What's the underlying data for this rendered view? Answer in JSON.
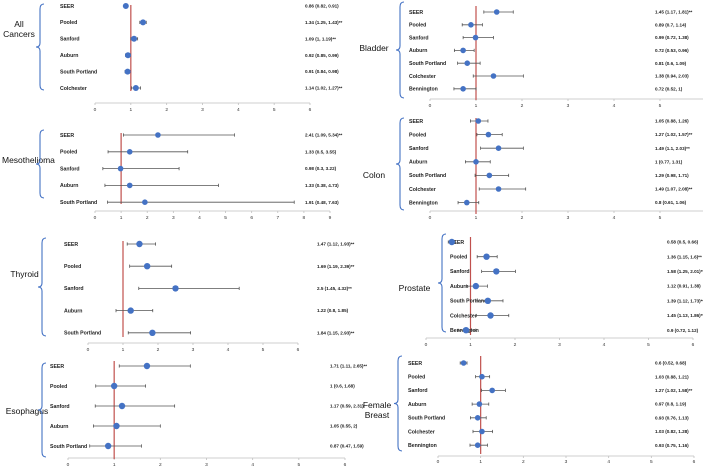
{
  "chart_data": [
    {
      "type": "forest",
      "title": "All Cancers",
      "xlim": [
        0,
        6
      ],
      "xticks": [
        0,
        1,
        2,
        3,
        4,
        5,
        6
      ],
      "reference_line": 1,
      "rows": [
        {
          "label": "SEER",
          "estimate": 0.86,
          "lower": 0.82,
          "upper": 0.91,
          "ci_text": "0.86 (0.82, 0.91)"
        },
        {
          "label": "Pooled",
          "estimate": 1.34,
          "lower": 1.25,
          "upper": 1.43,
          "ci_text": "1.34 (1.25, 1.43)**"
        },
        {
          "label": "Sanford",
          "estimate": 1.09,
          "lower": 1.0,
          "upper": 1.19,
          "ci_text": "1.09 (1, 1.19)**"
        },
        {
          "label": "Auburn",
          "estimate": 0.92,
          "lower": 0.85,
          "upper": 0.99,
          "ci_text": "0.92 (0.85, 0.99)"
        },
        {
          "label": "South Portland",
          "estimate": 0.91,
          "lower": 0.84,
          "upper": 0.98,
          "ci_text": "0.91 (0.84, 0.98)"
        },
        {
          "label": "Colchester",
          "estimate": 1.14,
          "lower": 1.02,
          "upper": 1.27,
          "ci_text": "1.14 (1.02, 1.27)**"
        }
      ]
    },
    {
      "type": "forest",
      "title": "Bladder",
      "xlim": [
        0,
        6
      ],
      "xticks": [
        0,
        1,
        2,
        3,
        4,
        5,
        6
      ],
      "reference_line": 1,
      "rows": [
        {
          "label": "SEER",
          "estimate": 1.45,
          "lower": 1.17,
          "upper": 1.81,
          "ci_text": "1.45 (1.17, 1.81)**"
        },
        {
          "label": "Pooled",
          "estimate": 0.89,
          "lower": 0.7,
          "upper": 1.14,
          "ci_text": "0.89 (0.7, 1.14)"
        },
        {
          "label": "Sanford",
          "estimate": 0.99,
          "lower": 0.72,
          "upper": 1.38,
          "ci_text": "0.99 (0.72, 1.38)"
        },
        {
          "label": "Auburn",
          "estimate": 0.72,
          "lower": 0.53,
          "upper": 0.96,
          "ci_text": "0.72 (0.53, 0.96)"
        },
        {
          "label": "South Portland",
          "estimate": 0.81,
          "lower": 0.6,
          "upper": 1.09,
          "ci_text": "0.81 (0.6, 1.09)"
        },
        {
          "label": "Colchester",
          "estimate": 1.38,
          "lower": 0.94,
          "upper": 2.03,
          "ci_text": "1.38 (0.94, 2.03)"
        },
        {
          "label": "Bennington",
          "estimate": 0.72,
          "lower": 0.52,
          "upper": 1.0,
          "ci_text": "0.72 (0.52, 1)"
        }
      ]
    },
    {
      "type": "forest",
      "title": "Mesothelioma",
      "xlim": [
        0,
        9
      ],
      "xticks": [
        0,
        1,
        2,
        3,
        4,
        5,
        6,
        7,
        8,
        9
      ],
      "reference_line": 1,
      "rows": [
        {
          "label": "SEER",
          "estimate": 2.41,
          "lower": 1.09,
          "upper": 5.34,
          "ci_text": "2.41 (1.09, 5.34)**"
        },
        {
          "label": "Pooled",
          "estimate": 1.33,
          "lower": 0.5,
          "upper": 3.55,
          "ci_text": "1.33 (0.5, 3.55)"
        },
        {
          "label": "Sanford",
          "estimate": 0.98,
          "lower": 0.3,
          "upper": 3.22,
          "ci_text": "0.98 (0.3, 3.22)"
        },
        {
          "label": "Auburn",
          "estimate": 1.33,
          "lower": 0.38,
          "upper": 4.73,
          "ci_text": "1.33 (0.38, 4.73)"
        },
        {
          "label": "South Portland",
          "estimate": 1.91,
          "lower": 0.48,
          "upper": 7.63,
          "ci_text": "1.91 (0.48, 7.63)"
        }
      ]
    },
    {
      "type": "forest",
      "title": "Colon",
      "xlim": [
        0,
        6
      ],
      "xticks": [
        0,
        1,
        2,
        3,
        4,
        5,
        6
      ],
      "reference_line": 1,
      "rows": [
        {
          "label": "SEER",
          "estimate": 1.05,
          "lower": 0.88,
          "upper": 1.26,
          "ci_text": "1.05 (0.88, 1.26)"
        },
        {
          "label": "Pooled",
          "estimate": 1.27,
          "lower": 1.02,
          "upper": 1.57,
          "ci_text": "1.27 (1.02, 1.57)**"
        },
        {
          "label": "Sanford",
          "estimate": 1.49,
          "lower": 1.1,
          "upper": 2.03,
          "ci_text": "1.49 (1.1, 2.03)**"
        },
        {
          "label": "Auburn",
          "estimate": 1.0,
          "lower": 0.77,
          "upper": 1.31,
          "ci_text": "1 (0.77, 1.31)"
        },
        {
          "label": "South Portland",
          "estimate": 1.29,
          "lower": 0.98,
          "upper": 1.71,
          "ci_text": "1.29 (0.98, 1.71)"
        },
        {
          "label": "Colchester",
          "estimate": 1.49,
          "lower": 1.07,
          "upper": 2.08,
          "ci_text": "1.49 (1.07, 2.08)**"
        },
        {
          "label": "Bennington",
          "estimate": 0.8,
          "lower": 0.61,
          "upper": 1.06,
          "ci_text": "0.8 (0.61, 1.06)"
        }
      ]
    },
    {
      "type": "forest",
      "title": "Thyroid",
      "xlim": [
        0,
        6
      ],
      "xticks": [
        0,
        1,
        2,
        3,
        4,
        5,
        6
      ],
      "reference_line": 1,
      "rows": [
        {
          "label": "SEER",
          "estimate": 1.47,
          "lower": 1.12,
          "upper": 1.93,
          "ci_text": "1.47 (1.12, 1.93)**"
        },
        {
          "label": "Pooled",
          "estimate": 1.69,
          "lower": 1.19,
          "upper": 2.39,
          "ci_text": "1.69 (1.19, 2.39)**"
        },
        {
          "label": "Sanford",
          "estimate": 2.5,
          "lower": 1.45,
          "upper": 4.32,
          "ci_text": "2.5 (1.45, 4.32)**"
        },
        {
          "label": "Auburn",
          "estimate": 1.22,
          "lower": 0.8,
          "upper": 1.85,
          "ci_text": "1.22 (0.8, 1.85)"
        },
        {
          "label": "South Portland",
          "estimate": 1.84,
          "lower": 1.15,
          "upper": 2.93,
          "ci_text": "1.84 (1.15, 2.93)**"
        }
      ]
    },
    {
      "type": "forest",
      "title": "Prostate",
      "xlim": [
        0,
        6
      ],
      "xticks": [
        0,
        1,
        2,
        3,
        4,
        5,
        6
      ],
      "reference_line": 1,
      "rows": [
        {
          "label": "SEER",
          "estimate": 0.58,
          "lower": 0.5,
          "upper": 0.66,
          "ci_text": "0.58 (0.5, 0.66)"
        },
        {
          "label": "Pooled",
          "estimate": 1.36,
          "lower": 1.15,
          "upper": 1.6,
          "ci_text": "1.36 (1.15, 1.6)**"
        },
        {
          "label": "Sanford",
          "estimate": 1.58,
          "lower": 1.25,
          "upper": 2.01,
          "ci_text": "1.58 (1.25, 2.01)**"
        },
        {
          "label": "Auburn",
          "estimate": 1.12,
          "lower": 0.91,
          "upper": 1.38,
          "ci_text": "1.12 (0.91, 1.38)"
        },
        {
          "label": "South Portland",
          "estimate": 1.39,
          "lower": 1.12,
          "upper": 1.73,
          "ci_text": "1.39 (1.12, 1.73)**"
        },
        {
          "label": "Colchester",
          "estimate": 1.45,
          "lower": 1.13,
          "upper": 1.86,
          "ci_text": "1.45 (1.13, 1.86)**"
        },
        {
          "label": "Bennington",
          "estimate": 0.9,
          "lower": 0.72,
          "upper": 1.12,
          "ci_text": "0.9 (0.72, 1.12)"
        }
      ]
    },
    {
      "type": "forest",
      "title": "Esophagus",
      "xlim": [
        0,
        6
      ],
      "xticks": [
        0,
        1,
        2,
        3,
        4,
        5,
        6
      ],
      "reference_line": 1,
      "rows": [
        {
          "label": "SEER",
          "estimate": 1.71,
          "lower": 1.11,
          "upper": 2.65,
          "ci_text": "1.71 (1.11, 2.65)**"
        },
        {
          "label": "Pooled",
          "estimate": 1.0,
          "lower": 0.6,
          "upper": 1.68,
          "ci_text": "1 (0.6, 1.68)"
        },
        {
          "label": "Sanford",
          "estimate": 1.17,
          "lower": 0.59,
          "upper": 2.31,
          "ci_text": "1.17 (0.59, 2.31)"
        },
        {
          "label": "Auburn",
          "estimate": 1.05,
          "lower": 0.55,
          "upper": 2.0,
          "ci_text": "1.05 (0.55, 2)"
        },
        {
          "label": "South Portland",
          "estimate": 0.87,
          "lower": 0.47,
          "upper": 1.59,
          "ci_text": "0.87 (0.47, 1.59)"
        }
      ]
    },
    {
      "type": "forest",
      "title": "Female Breast",
      "xlim": [
        0,
        6
      ],
      "xticks": [
        0,
        1,
        2,
        3,
        4,
        5,
        6
      ],
      "reference_line": 1,
      "rows": [
        {
          "label": "SEER",
          "estimate": 0.6,
          "lower": 0.52,
          "upper": 0.68,
          "ci_text": "0.6 (0.52, 0.68)"
        },
        {
          "label": "Pooled",
          "estimate": 1.03,
          "lower": 0.88,
          "upper": 1.21,
          "ci_text": "1.03 (0.88, 1.21)"
        },
        {
          "label": "Sanford",
          "estimate": 1.27,
          "lower": 1.02,
          "upper": 1.58,
          "ci_text": "1.27 (1.02, 1.58)**"
        },
        {
          "label": "Auburn",
          "estimate": 0.97,
          "lower": 0.8,
          "upper": 1.19,
          "ci_text": "0.97 (0.8, 1.19)"
        },
        {
          "label": "South Portland",
          "estimate": 0.93,
          "lower": 0.76,
          "upper": 1.13,
          "ci_text": "0.93 (0.76, 1.13)"
        },
        {
          "label": "Colchester",
          "estimate": 1.03,
          "lower": 0.82,
          "upper": 1.28,
          "ci_text": "1.03 (0.82, 1.28)"
        },
        {
          "label": "Bennington",
          "estimate": 0.93,
          "lower": 0.75,
          "upper": 1.16,
          "ci_text": "0.93 (0.75, 1.16)"
        }
      ]
    }
  ]
}
